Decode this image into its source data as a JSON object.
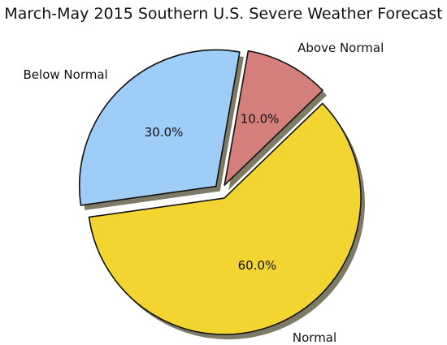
{
  "chart_data": {
    "type": "pie",
    "title": "March-May 2015 Southern U.S. Severe Weather Forecast",
    "slices": [
      {
        "label": "Below Normal",
        "value": 30.0,
        "pct_label": "30.0%",
        "color": "#9ecdf7",
        "exploded": true
      },
      {
        "label": "Normal",
        "value": 60.0,
        "pct_label": "60.0%",
        "color": "#f3d531",
        "exploded": true
      },
      {
        "label": "Above Normal",
        "value": 10.0,
        "pct_label": "10.0%",
        "color": "#d57f7c",
        "exploded": true
      }
    ],
    "shadow": true,
    "legend": "none"
  }
}
